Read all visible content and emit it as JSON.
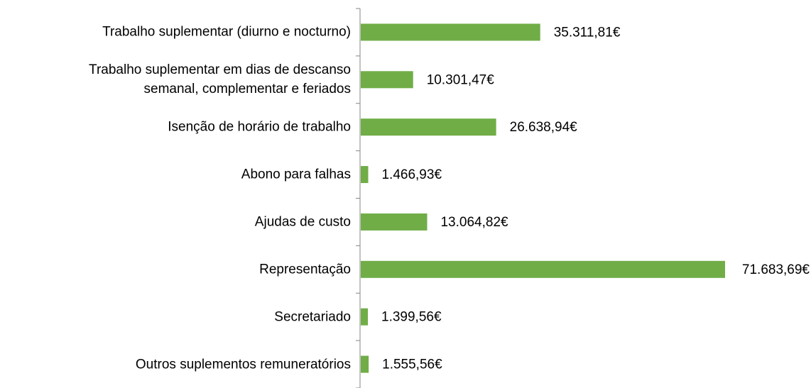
{
  "chart_data": {
    "type": "bar",
    "orientation": "horizontal",
    "categories": [
      "Trabalho suplementar (diurno e nocturno)",
      "Trabalho suplementar em dias de descanso\nsemanal, complementar e feriados",
      "Isenção de horário de trabalho",
      "Abono para falhas",
      "Ajudas de custo",
      "Representação",
      "Secretariado",
      "Outros suplementos remuneratórios"
    ],
    "values": [
      35311.81,
      10301.47,
      26638.94,
      1466.93,
      13064.82,
      71683.69,
      1399.56,
      1555.56
    ],
    "value_labels": [
      "35.311,81€",
      "10.301,47€",
      "26.638,94€",
      "1.466,93€",
      "13.064,82€",
      "71.683,69€",
      "1.399,56€",
      "1.555,56€"
    ],
    "color": "#70ad47"
  }
}
